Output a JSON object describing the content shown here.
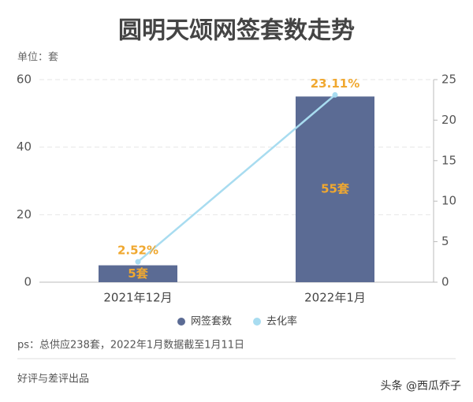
{
  "chart_data": {
    "type": "bar",
    "title": "圆明天颂网签套数走势",
    "y_label": "单位：套",
    "categories": [
      "2021年12月",
      "2022年1月"
    ],
    "series": [
      {
        "name": "网签套数",
        "type": "bar",
        "color": "#5b6b94",
        "values": [
          5,
          55
        ],
        "value_labels": [
          "5套",
          "55套"
        ]
      },
      {
        "name": "去化率",
        "type": "line",
        "axis": "y2",
        "color": "#a8dcf0",
        "values": [
          2.52,
          23.11
        ],
        "value_labels": [
          "2.52%",
          "23.11%"
        ]
      }
    ],
    "ylim": [
      0,
      60
    ],
    "yticks": [
      0,
      20,
      40,
      60
    ],
    "y2lim": [
      0,
      25
    ],
    "y2ticks": [
      0,
      5,
      10,
      15,
      20,
      25
    ],
    "grid": true,
    "legend": "bottom",
    "label_color": "#f0a830",
    "note": "ps：总供应238套，2022年1月数据截至1月11日",
    "footer": "好评与差评出品",
    "watermark": "头条 @西瓜乔子"
  }
}
